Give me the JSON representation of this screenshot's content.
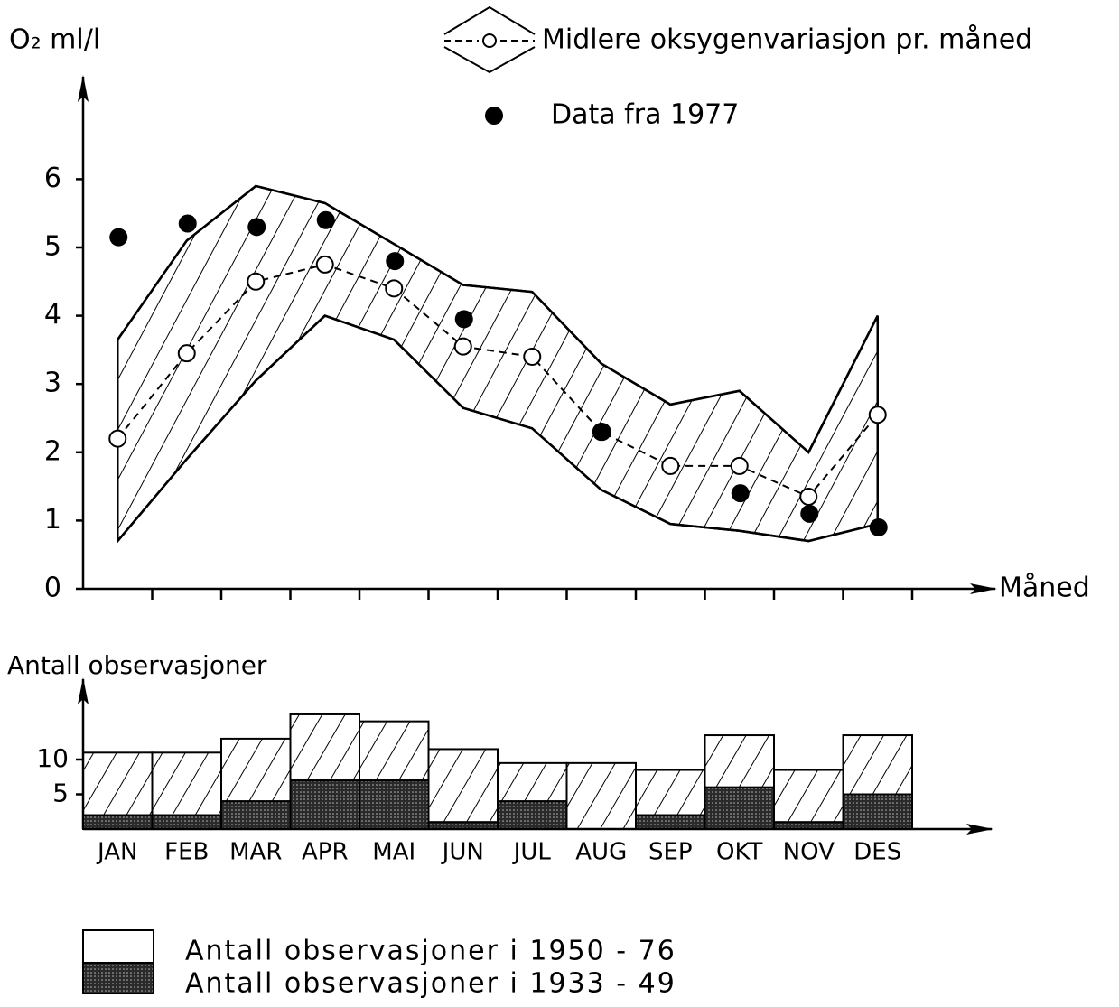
{
  "chart_data": [
    {
      "type": "band-line",
      "y_label": "O₂ ml/l",
      "x_label": "Måned",
      "ylim": [
        0,
        7.5
      ],
      "yticks": [
        0,
        1,
        2,
        3,
        4,
        5,
        6
      ],
      "series": [
        {
          "name": "Midlere oksygenvariasjon pr. måned",
          "color": "#000000",
          "values": [
            2.2,
            3.45,
            4.5,
            4.75,
            4.4,
            3.55,
            3.4,
            2.3,
            1.8,
            1.8,
            1.35,
            2.55
          ],
          "max": [
            3.65,
            5.1,
            5.9,
            5.65,
            5.05,
            4.45,
            4.35,
            3.3,
            2.7,
            2.9,
            2.0,
            4.0
          ],
          "min": [
            0.7,
            1.9,
            3.05,
            4.0,
            3.65,
            2.65,
            2.35,
            1.45,
            0.95,
            0.85,
            0.7,
            0.95
          ]
        },
        {
          "name": "Data fra 1977",
          "color": "#000000",
          "values": [
            5.15,
            5.35,
            5.3,
            5.4,
            4.8,
            3.95,
            null,
            2.3,
            null,
            1.4,
            1.1,
            0.9
          ]
        }
      ]
    },
    {
      "type": "stacked-bar",
      "y_label": "Antall observasjoner",
      "categories": [
        "JAN",
        "FEB",
        "MAR",
        "APR",
        "MAI",
        "JUN",
        "JUL",
        "AUG",
        "SEP",
        "OKT",
        "NOV",
        "DES"
      ],
      "ylim": [
        0,
        20
      ],
      "yticks": [
        5,
        10
      ],
      "series": [
        {
          "name": "Antall observasjoner i 1950 - 76",
          "color": "#ffffff",
          "hatch": true,
          "values": [
            9,
            9,
            9,
            9.5,
            8.5,
            10.5,
            5.5,
            9.5,
            6.5,
            7.5,
            7.5,
            8.5
          ]
        },
        {
          "name": "Antall observasjoner i 1933 - 49",
          "color": "#2a2a2a",
          "hatch": false,
          "values": [
            2,
            2,
            4,
            7,
            7,
            1,
            4,
            0,
            2,
            6,
            1,
            5
          ]
        }
      ]
    }
  ]
}
